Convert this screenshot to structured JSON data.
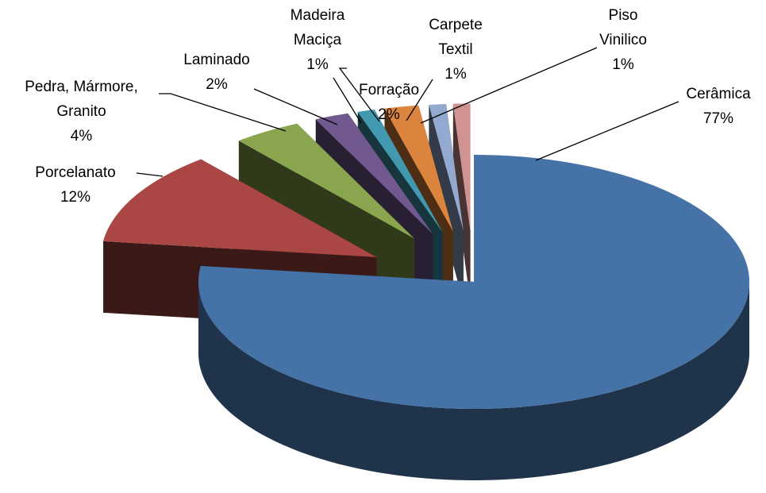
{
  "chart_data": {
    "type": "pie3d",
    "categories": [
      "Cerâmica",
      "Porcelanato",
      "Pedra, Mármore, Granito",
      "Laminado",
      "Madeira Maciça",
      "Forração",
      "Carpete Textil",
      "Piso Vinilico"
    ],
    "values": [
      77,
      12,
      4,
      2,
      1,
      2,
      1,
      1
    ],
    "value_labels": [
      "77%",
      "12%",
      "4%",
      "2%",
      "1%",
      "2%",
      "1%",
      "1%"
    ],
    "colors": [
      "#4572a7",
      "#aa4643",
      "#89a54e",
      "#71588f",
      "#4198af",
      "#db843d",
      "#93a9cf",
      "#d19392"
    ]
  }
}
